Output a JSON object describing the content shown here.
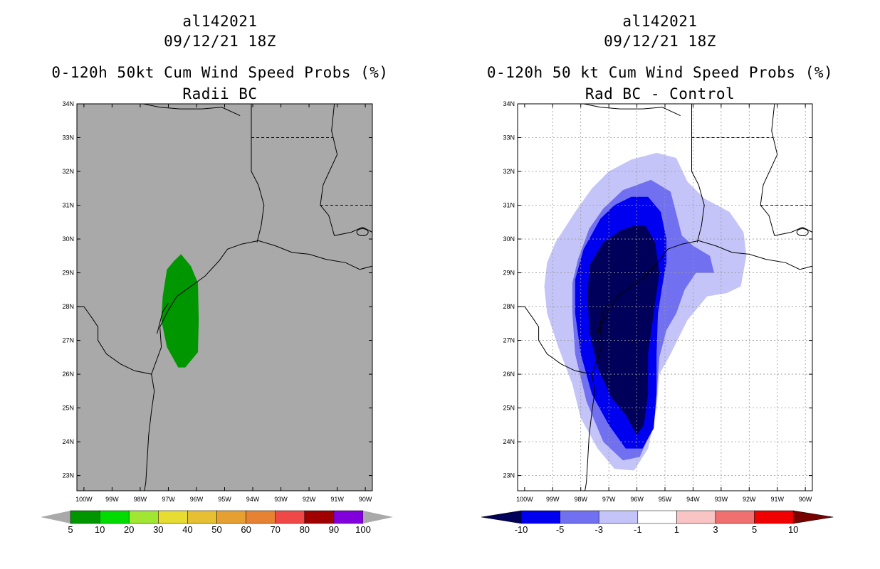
{
  "panels": [
    {
      "id": "left",
      "title_lines": [
        "al142021",
        "09/12/21 18Z",
        "0-120h 50kt Cum Wind Speed Probs (%)",
        "Radii BC"
      ],
      "map_background": "#a9a9a9",
      "colorbar": {
        "colors": [
          "#009600",
          "#00dc00",
          "#a0e632",
          "#e6dc32",
          "#e6c032",
          "#e6a032",
          "#e68232",
          "#f04846",
          "#a00000",
          "#8200dc"
        ],
        "end_color": "#a9a9a9",
        "labels": [
          "5",
          "10",
          "20",
          "30",
          "40",
          "50",
          "60",
          "70",
          "80",
          "90",
          "100"
        ]
      },
      "shading": [
        {
          "level": "5-10",
          "color": "#009600"
        }
      ]
    },
    {
      "id": "right",
      "title_lines": [
        "al142021",
        "09/12/21 18Z",
        "0-120h 50 kt Cum Wind Speed Probs (%)",
        "Rad BC - Control"
      ],
      "map_background": "#ffffff",
      "colorbar": {
        "colors": [
          "#0000f0",
          "#7070f0",
          "#c4c4f8",
          "#ffffff",
          "#f8c4c4",
          "#f07070",
          "#f00000"
        ],
        "start_color": "#00005a",
        "end_color": "#780000",
        "labels": [
          "-10",
          "-5",
          "-3",
          "-1",
          "1",
          "3",
          "5",
          "10"
        ]
      },
      "shading": [
        {
          "level": "-1 to -3",
          "color": "#c4c4f8"
        },
        {
          "level": "-3 to -5",
          "color": "#7070f0"
        },
        {
          "level": "-5 to -10",
          "color": "#0000f0"
        },
        {
          "level": "< -10",
          "color": "#00005a"
        }
      ]
    }
  ],
  "axes": {
    "lon_labels": [
      "100W",
      "99W",
      "98W",
      "97W",
      "96W",
      "95W",
      "94W",
      "93W",
      "92W",
      "91W",
      "90W"
    ],
    "lat_labels": [
      "34N",
      "33N",
      "32N",
      "31N",
      "30N",
      "29N",
      "28N",
      "27N",
      "26N",
      "25N",
      "24N",
      "23N"
    ]
  }
}
